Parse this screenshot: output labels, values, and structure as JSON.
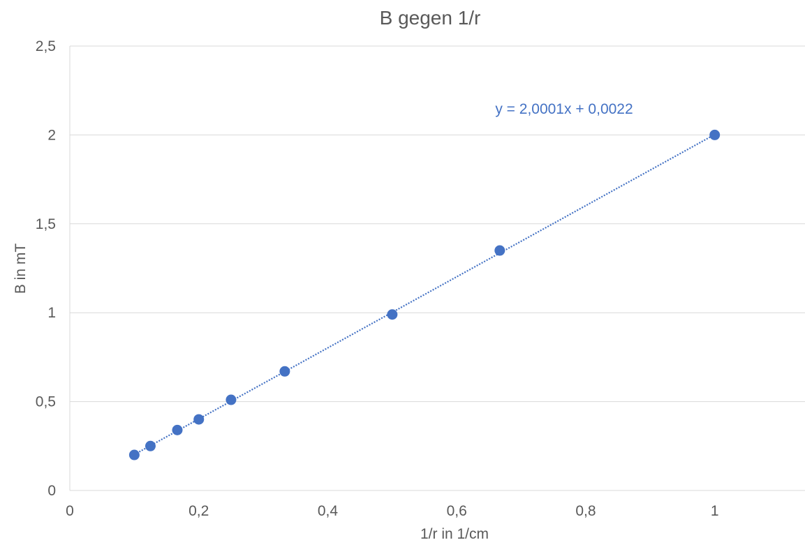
{
  "chart_data": {
    "type": "scatter",
    "title": "B gegen 1/r",
    "xlabel": "1/r in 1/cm",
    "ylabel": "B in mT",
    "xlim": [
      0,
      1.14
    ],
    "ylim": [
      0,
      2.5
    ],
    "x_ticks": [
      0,
      0.2,
      0.4,
      0.6,
      0.8,
      1
    ],
    "x_tick_labels": [
      "0",
      "0,2",
      "0,4",
      "0,6",
      "0,8",
      "1"
    ],
    "y_ticks": [
      0,
      0.5,
      1,
      1.5,
      2,
      2.5
    ],
    "y_tick_labels": [
      "0",
      "0,5",
      "1",
      "1,5",
      "2",
      "2,5"
    ],
    "grid": "horizontal",
    "legend": "none",
    "series": [
      {
        "x": [
          0.1,
          0.125,
          0.1667,
          0.2,
          0.25,
          0.3333,
          0.5,
          0.6667,
          1.0
        ],
        "y": [
          0.2,
          0.25,
          0.34,
          0.4,
          0.51,
          0.67,
          0.99,
          1.35,
          2.0
        ],
        "color": "#4472C4"
      }
    ],
    "trendline": {
      "kind": "linear",
      "slope": 2.0001,
      "intercept": 0.0022,
      "x_range": [
        0.1,
        1.0
      ],
      "style": "dotted",
      "color": "#4472C4",
      "equation_label": "y = 2,0001x + 0,0022"
    }
  }
}
